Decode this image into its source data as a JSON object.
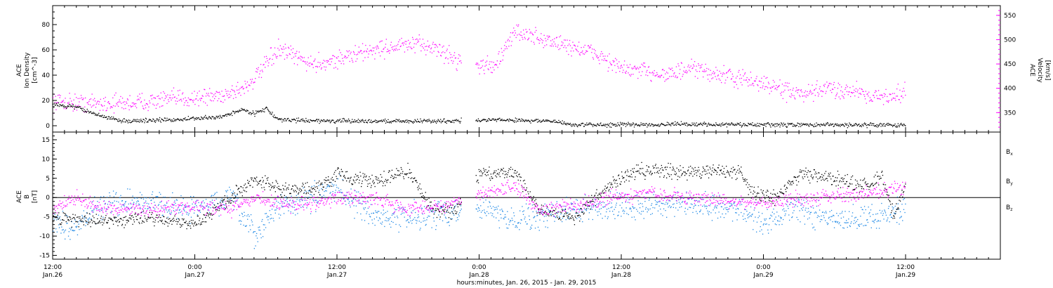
{
  "chart_data": [
    {
      "type": "scatter",
      "panel": "top",
      "ylabel_left": [
        "ACE",
        "Ion Density",
        "[cm^-3]"
      ],
      "ylabel_right": [
        "ACE",
        "Velocity",
        "[km/s]"
      ],
      "xlim": [
        "2015-01-26T12:00",
        "2015-01-29T20:00"
      ],
      "ylim_left": [
        -5,
        95
      ],
      "ylim_right": [
        310,
        570
      ],
      "yticks_left": [
        0,
        20,
        40,
        60,
        80
      ],
      "yticks_right": [
        350,
        400,
        450,
        500,
        550
      ],
      "grid": false,
      "colors": {
        "density": "#000000",
        "velocity": "#ff00ff"
      },
      "series": [
        {
          "name": "Ion Density",
          "axis": "left",
          "color": "#000000",
          "keypoints": [
            [
              "2015-01-26T12:00",
              17
            ],
            [
              "2015-01-26T14:00",
              15
            ],
            [
              "2015-01-26T16:00",
              8
            ],
            [
              "2015-01-26T18:00",
              4
            ],
            [
              "2015-01-26T22:00",
              5
            ],
            [
              "2015-01-27T02:00",
              7
            ],
            [
              "2015-01-27T04:00",
              13
            ],
            [
              "2015-01-27T05:00",
              10
            ],
            [
              "2015-01-27T06:00",
              14
            ],
            [
              "2015-01-27T07:00",
              5
            ],
            [
              "2015-01-27T12:00",
              4
            ],
            [
              "2015-01-27T20:00",
              4
            ],
            [
              "2015-01-28T02:00",
              5
            ],
            [
              "2015-01-28T06:00",
              4
            ],
            [
              "2015-01-28T08:00",
              1
            ],
            [
              "2015-01-28T18:00",
              1.5
            ],
            [
              "2015-01-29T00:00",
              1
            ],
            [
              "2015-01-29T12:00",
              1
            ]
          ]
        },
        {
          "name": "Velocity",
          "axis": "right",
          "color": "#ff00ff",
          "keypoints": [
            [
              "2015-01-26T12:00",
              375
            ],
            [
              "2015-01-26T15:00",
              370
            ],
            [
              "2015-01-26T18:00",
              370
            ],
            [
              "2015-01-26T23:00",
              380
            ],
            [
              "2015-01-27T02:00",
              385
            ],
            [
              "2015-01-27T04:00",
              400
            ],
            [
              "2015-01-27T05:00",
              420
            ],
            [
              "2015-01-27T06:00",
              450
            ],
            [
              "2015-01-27T07:00",
              480
            ],
            [
              "2015-01-27T09:00",
              460
            ],
            [
              "2015-01-27T10:00",
              450
            ],
            [
              "2015-01-27T12:00",
              460
            ],
            [
              "2015-01-27T15:00",
              480
            ],
            [
              "2015-01-27T18:00",
              490
            ],
            [
              "2015-01-27T20:00",
              487
            ],
            [
              "2015-01-27T22:00",
              460
            ],
            [
              "2015-01-28T00:00",
              450
            ],
            [
              "2015-01-28T01:00",
              445
            ],
            [
              "2015-01-28T02:00",
              470
            ],
            [
              "2015-01-28T03:00",
              520
            ],
            [
              "2015-01-28T04:00",
              510
            ],
            [
              "2015-01-28T08:00",
              485
            ],
            [
              "2015-01-28T10:00",
              470
            ],
            [
              "2015-01-28T12:00",
              440
            ],
            [
              "2015-01-28T16:00",
              430
            ],
            [
              "2015-01-28T18:00",
              440
            ],
            [
              "2015-01-28T20:00",
              430
            ],
            [
              "2015-01-29T00:00",
              410
            ],
            [
              "2015-01-29T02:00",
              395
            ],
            [
              "2015-01-29T03:30",
              385
            ],
            [
              "2015-01-29T05:00",
              400
            ],
            [
              "2015-01-29T08:00",
              395
            ],
            [
              "2015-01-29T10:00",
              380
            ],
            [
              "2015-01-29T12:00",
              395
            ]
          ]
        }
      ]
    },
    {
      "type": "scatter",
      "panel": "bottom",
      "ylabel_left": [
        "ACE",
        "B",
        "[nT]"
      ],
      "xlim": [
        "2015-01-26T12:00",
        "2015-01-29T20:00"
      ],
      "ylim": [
        -16,
        17
      ],
      "yticks": [
        -15,
        -10,
        -5,
        0,
        5,
        10,
        15
      ],
      "zero_line": true,
      "grid": false,
      "legend": [
        {
          "label": "B",
          "sub": "x",
          "color": "#000000"
        },
        {
          "label": "B",
          "sub": "y",
          "color": "#1e88e5"
        },
        {
          "label": "B",
          "sub": "z",
          "color": "#ff00ff"
        }
      ],
      "series": [
        {
          "name": "Bx",
          "color": "#000000",
          "keypoints": [
            [
              "2015-01-26T12:00",
              -5
            ],
            [
              "2015-01-26T16:00",
              -6
            ],
            [
              "2015-01-26T20:00",
              -5
            ],
            [
              "2015-01-27T00:00",
              -7
            ],
            [
              "2015-01-27T03:00",
              0
            ],
            [
              "2015-01-27T05:00",
              5
            ],
            [
              "2015-01-27T07:00",
              2
            ],
            [
              "2015-01-27T10:00",
              2
            ],
            [
              "2015-01-27T12:00",
              6
            ],
            [
              "2015-01-27T15:00",
              4
            ],
            [
              "2015-01-27T18:00",
              7
            ],
            [
              "2015-01-27T20:00",
              -3
            ],
            [
              "2015-01-27T22:00",
              -3
            ],
            [
              "2015-01-28T00:00",
              6
            ],
            [
              "2015-01-28T03:00",
              7
            ],
            [
              "2015-01-28T05:00",
              -3
            ],
            [
              "2015-01-28T08:00",
              -5
            ],
            [
              "2015-01-28T11:00",
              3
            ],
            [
              "2015-01-28T13:00",
              7
            ],
            [
              "2015-01-28T17:00",
              7
            ],
            [
              "2015-01-28T22:00",
              7
            ],
            [
              "2015-01-28T23:00",
              1
            ],
            [
              "2015-01-29T01:00",
              0
            ],
            [
              "2015-01-29T03:00",
              6
            ],
            [
              "2015-01-29T05:00",
              6
            ],
            [
              "2015-01-29T07:00",
              4
            ],
            [
              "2015-01-29T09:00",
              3
            ],
            [
              "2015-01-29T10:00",
              6
            ],
            [
              "2015-01-29T11:00",
              -5
            ],
            [
              "2015-01-29T12:00",
              4
            ]
          ]
        },
        {
          "name": "By",
          "color": "#1e88e5",
          "keypoints": [
            [
              "2015-01-26T12:00",
              -7
            ],
            [
              "2015-01-26T14:00",
              -7
            ],
            [
              "2015-01-26T16:00",
              -2
            ],
            [
              "2015-01-26T20:00",
              -1
            ],
            [
              "2015-01-27T00:00",
              -3
            ],
            [
              "2015-01-27T03:00",
              0
            ],
            [
              "2015-01-27T05:00",
              -10
            ],
            [
              "2015-01-27T07:00",
              -2
            ],
            [
              "2015-01-27T09:00",
              -1
            ],
            [
              "2015-01-27T12:00",
              3
            ],
            [
              "2015-01-27T15:00",
              -5
            ],
            [
              "2015-01-27T18:00",
              -5
            ],
            [
              "2015-01-27T21:00",
              -4
            ],
            [
              "2015-01-28T00:00",
              -2
            ],
            [
              "2015-01-28T02:00",
              -5
            ],
            [
              "2015-01-28T05:00",
              -5
            ],
            [
              "2015-01-28T08:00",
              -3
            ],
            [
              "2015-01-28T12:00",
              -2
            ],
            [
              "2015-01-28T18:00",
              -2
            ],
            [
              "2015-01-28T22:00",
              -3
            ],
            [
              "2015-01-29T00:00",
              -6
            ],
            [
              "2015-01-29T03:00",
              -3
            ],
            [
              "2015-01-29T06:00",
              -6
            ],
            [
              "2015-01-29T09:00",
              -5
            ],
            [
              "2015-01-29T12:00",
              -3
            ]
          ]
        },
        {
          "name": "Bz",
          "color": "#ff00ff",
          "keypoints": [
            [
              "2015-01-26T12:00",
              -3
            ],
            [
              "2015-01-26T14:00",
              0
            ],
            [
              "2015-01-26T16:00",
              -3
            ],
            [
              "2015-01-26T20:00",
              -3
            ],
            [
              "2015-01-27T00:00",
              -2
            ],
            [
              "2015-01-27T03:00",
              -3
            ],
            [
              "2015-01-27T05:00",
              0
            ],
            [
              "2015-01-27T08:00",
              -2
            ],
            [
              "2015-01-27T12:00",
              0
            ],
            [
              "2015-01-27T15:00",
              0
            ],
            [
              "2015-01-27T18:00",
              -3
            ],
            [
              "2015-01-27T21:00",
              -2
            ],
            [
              "2015-01-28T00:00",
              1
            ],
            [
              "2015-01-28T03:00",
              3
            ],
            [
              "2015-01-28T05:00",
              -3
            ],
            [
              "2015-01-28T08:00",
              -2
            ],
            [
              "2015-01-28T11:00",
              0
            ],
            [
              "2015-01-28T14:00",
              1
            ],
            [
              "2015-01-28T18:00",
              0
            ],
            [
              "2015-01-28T22:00",
              -1
            ],
            [
              "2015-01-29T00:00",
              -1
            ],
            [
              "2015-01-29T04:00",
              0
            ],
            [
              "2015-01-29T08:00",
              1
            ],
            [
              "2015-01-29T10:00",
              2
            ],
            [
              "2015-01-29T12:00",
              3
            ]
          ]
        }
      ]
    }
  ],
  "x_axis": {
    "ticks": [
      {
        "time": "2015-01-26T12:00",
        "label": "12:00",
        "date": "Jan.26"
      },
      {
        "time": "2015-01-27T00:00",
        "label": "0:00",
        "date": "Jan.27"
      },
      {
        "time": "2015-01-27T12:00",
        "label": "12:00",
        "date": "Jan.27"
      },
      {
        "time": "2015-01-28T00:00",
        "label": "0:00",
        "date": "Jan.28"
      },
      {
        "time": "2015-01-28T12:00",
        "label": "12:00",
        "date": "Jan.28"
      },
      {
        "time": "2015-01-29T00:00",
        "label": "0:00",
        "date": "Jan.29"
      },
      {
        "time": "2015-01-29T12:00",
        "label": "12:00",
        "date": "Jan.29"
      }
    ],
    "xlabel": "hours:minutes, Jan. 26, 2015 - Jan. 29, 2015"
  }
}
